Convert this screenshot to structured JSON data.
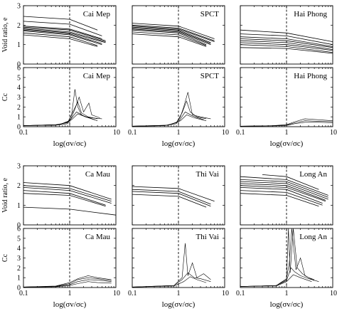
{
  "figure": {
    "panel_labels": [
      "Cai Mep",
      "SPCT",
      "Hai Phong",
      "Ca Mau",
      "Thi Vai",
      "Long An"
    ],
    "x_axis_label": "log(σv/σc)",
    "y_label_void": "Void ratio, e",
    "y_label_cc": "Cc",
    "x_ticks": [
      "0.1",
      "1",
      "10"
    ],
    "y_ticks_void": [
      "0",
      "1",
      "2",
      "3"
    ],
    "y_ticks_cc": [
      "0",
      "1",
      "2",
      "3",
      "4",
      "5",
      "6"
    ]
  },
  "chart_data": [
    {
      "type": "line",
      "site": "Cai Mep",
      "ylabel": "Void ratio, e",
      "xlabel": "",
      "xscale": "log",
      "xlim": [
        0.1,
        10
      ],
      "ylim": [
        0,
        3
      ],
      "reference_line_x": 1,
      "series": [
        {
          "x": [
            0.1,
            1,
            4
          ],
          "values": [
            2.45,
            2.3,
            1.75
          ]
        },
        {
          "x": [
            0.1,
            1,
            5
          ],
          "values": [
            2.2,
            2.05,
            1.45
          ]
        },
        {
          "x": [
            0.1,
            1,
            5
          ],
          "values": [
            1.95,
            1.8,
            1.3
          ]
        },
        {
          "x": [
            0.1,
            1,
            6
          ],
          "values": [
            1.9,
            1.75,
            1.2
          ]
        },
        {
          "x": [
            0.1,
            1,
            6
          ],
          "values": [
            1.85,
            1.65,
            1.15
          ]
        },
        {
          "x": [
            0.1,
            1,
            6
          ],
          "values": [
            1.8,
            1.6,
            1.1
          ]
        },
        {
          "x": [
            0.1,
            1,
            5
          ],
          "values": [
            1.75,
            1.55,
            1.05
          ]
        },
        {
          "x": [
            0.1,
            1,
            5
          ],
          "values": [
            1.7,
            1.5,
            1.0
          ]
        },
        {
          "x": [
            0.1,
            1,
            4
          ],
          "values": [
            1.6,
            1.4,
            0.95
          ]
        },
        {
          "x": [
            0.1,
            1,
            4
          ],
          "values": [
            1.5,
            1.3,
            0.9
          ]
        }
      ]
    },
    {
      "type": "line",
      "site": "SPCT",
      "ylabel": "",
      "xlabel": "",
      "xscale": "log",
      "xlim": [
        0.1,
        10
      ],
      "ylim": [
        0,
        3
      ],
      "reference_line_x": 1,
      "series": [
        {
          "x": [
            0.1,
            1,
            6
          ],
          "values": [
            2.1,
            1.95,
            1.3
          ]
        },
        {
          "x": [
            0.1,
            1,
            6
          ],
          "values": [
            2.0,
            1.85,
            1.2
          ]
        },
        {
          "x": [
            0.1,
            1,
            6
          ],
          "values": [
            1.95,
            1.8,
            1.15
          ]
        },
        {
          "x": [
            0.1,
            1,
            5
          ],
          "values": [
            1.9,
            1.75,
            1.1
          ]
        },
        {
          "x": [
            0.1,
            1,
            5
          ],
          "values": [
            1.85,
            1.7,
            1.05
          ]
        },
        {
          "x": [
            0.1,
            1,
            5
          ],
          "values": [
            1.8,
            1.65,
            1.0
          ]
        },
        {
          "x": [
            0.1,
            1,
            4
          ],
          "values": [
            1.75,
            1.6,
            1.0
          ]
        },
        {
          "x": [
            0.1,
            1,
            4
          ],
          "values": [
            1.65,
            1.5,
            0.95
          ]
        },
        {
          "x": [
            0.1,
            1,
            4
          ],
          "values": [
            1.55,
            1.4,
            0.9
          ]
        }
      ]
    },
    {
      "type": "line",
      "site": "Hai Phong",
      "ylabel": "",
      "xlabel": "",
      "xscale": "log",
      "xlim": [
        0.1,
        10
      ],
      "ylim": [
        0,
        3
      ],
      "reference_line_x": 1,
      "series": [
        {
          "x": [
            0.1,
            1,
            10
          ],
          "values": [
            1.75,
            1.6,
            1.15
          ]
        },
        {
          "x": [
            0.1,
            1,
            10
          ],
          "values": [
            1.55,
            1.45,
            1.0
          ]
        },
        {
          "x": [
            0.1,
            1,
            10
          ],
          "values": [
            1.4,
            1.3,
            0.9
          ]
        },
        {
          "x": [
            0.1,
            1,
            10
          ],
          "values": [
            1.3,
            1.2,
            0.85
          ]
        },
        {
          "x": [
            0.1,
            1,
            10
          ],
          "values": [
            1.2,
            1.1,
            0.75
          ]
        },
        {
          "x": [
            0.1,
            1,
            10
          ],
          "values": [
            1.1,
            1.0,
            0.7
          ]
        },
        {
          "x": [
            0.1,
            1,
            10
          ],
          "values": [
            1.0,
            0.9,
            0.6
          ]
        },
        {
          "x": [
            0.1,
            1,
            10
          ],
          "values": [
            0.85,
            0.8,
            0.55
          ]
        }
      ]
    },
    {
      "type": "line",
      "site": "Cai Mep",
      "ylabel": "Cc",
      "xlabel": "log(σv/σc)",
      "xscale": "log",
      "xlim": [
        0.1,
        10
      ],
      "ylim": [
        0,
        6
      ],
      "reference_line_x": 1,
      "series": [
        {
          "x": [
            0.1,
            0.5,
            0.9,
            1.1,
            1.3,
            1.5,
            1.8,
            2.2,
            3,
            5
          ],
          "values": [
            0.1,
            0.15,
            0.3,
            1.2,
            3.8,
            2.0,
            1.2,
            1.0,
            0.9,
            0.8
          ]
        },
        {
          "x": [
            0.1,
            0.5,
            0.9,
            1.2,
            1.5,
            1.8,
            2.5,
            4
          ],
          "values": [
            0.1,
            0.2,
            0.4,
            1.6,
            2.5,
            1.4,
            1.0,
            0.8
          ]
        },
        {
          "x": [
            0.1,
            0.5,
            1.0,
            1.3,
            1.6,
            2.0,
            2.6,
            3.0,
            4.5
          ],
          "values": [
            0.1,
            0.15,
            0.5,
            1.8,
            3.0,
            1.5,
            2.4,
            1.2,
            0.9
          ]
        },
        {
          "x": [
            0.1,
            0.6,
            1.0,
            1.4,
            2.0,
            3.5
          ],
          "values": [
            0.1,
            0.2,
            0.6,
            1.5,
            1.1,
            0.7
          ]
        },
        {
          "x": [
            0.1,
            0.6,
            1.1,
            1.5,
            2.2,
            4
          ],
          "values": [
            0.1,
            0.2,
            0.7,
            1.3,
            1.0,
            0.6
          ]
        }
      ]
    },
    {
      "type": "line",
      "site": "SPCT",
      "ylabel": "",
      "xlabel": "log(σv/σc)",
      "xscale": "log",
      "xlim": [
        0.1,
        10
      ],
      "ylim": [
        0,
        6
      ],
      "reference_line_x": 1,
      "series": [
        {
          "x": [
            0.1,
            0.5,
            0.9,
            1.1,
            1.3,
            1.6,
            2.0,
            3.0,
            5
          ],
          "values": [
            0.05,
            0.1,
            0.3,
            1.0,
            2.0,
            3.5,
            1.2,
            1.0,
            0.8
          ]
        },
        {
          "x": [
            0.1,
            0.5,
            0.9,
            1.2,
            1.5,
            1.8,
            2.5,
            4
          ],
          "values": [
            0.05,
            0.1,
            0.4,
            1.4,
            2.6,
            1.5,
            1.0,
            0.8
          ]
        },
        {
          "x": [
            0.1,
            0.6,
            1.0,
            1.4,
            2.0,
            3.5
          ],
          "values": [
            0.05,
            0.15,
            0.5,
            1.5,
            1.1,
            0.7
          ]
        },
        {
          "x": [
            0.1,
            0.6,
            1.1,
            1.5,
            2.2,
            4
          ],
          "values": [
            0.05,
            0.15,
            0.6,
            1.2,
            0.9,
            0.6
          ]
        }
      ]
    },
    {
      "type": "line",
      "site": "Hai Phong",
      "ylabel": "",
      "xlabel": "log(σv/σc)",
      "xscale": "log",
      "xlim": [
        0.1,
        10
      ],
      "ylim": [
        0,
        6
      ],
      "reference_line_x": 1,
      "series": [
        {
          "x": [
            0.1,
            0.5,
            1,
            1.5,
            2.5,
            5,
            10
          ],
          "values": [
            0.05,
            0.1,
            0.2,
            0.5,
            0.8,
            0.7,
            0.6
          ]
        },
        {
          "x": [
            0.1,
            0.5,
            1,
            1.5,
            2.5,
            5,
            10
          ],
          "values": [
            0.05,
            0.1,
            0.15,
            0.4,
            0.6,
            0.55,
            0.5
          ]
        },
        {
          "x": [
            0.1,
            0.5,
            1,
            1.5,
            2.5,
            5,
            10
          ],
          "values": [
            0.05,
            0.08,
            0.12,
            0.3,
            0.45,
            0.45,
            0.4
          ]
        }
      ]
    },
    {
      "type": "line",
      "site": "Ca Mau",
      "ylabel": "Void ratio, e",
      "xlabel": "",
      "xscale": "log",
      "xlim": [
        0.1,
        10
      ],
      "ylim": [
        0,
        3
      ],
      "reference_line_x": 1,
      "series": [
        {
          "x": [
            0.1,
            1,
            8
          ],
          "values": [
            2.15,
            2.0,
            1.3
          ]
        },
        {
          "x": [
            0.1,
            1,
            8
          ],
          "values": [
            2.0,
            1.85,
            1.2
          ]
        },
        {
          "x": [
            0.1,
            1,
            8
          ],
          "values": [
            1.9,
            1.75,
            1.1
          ]
        },
        {
          "x": [
            0.1,
            1,
            6
          ],
          "values": [
            1.75,
            1.6,
            1.0
          ]
        },
        {
          "x": [
            0.1,
            1,
            6
          ],
          "values": [
            1.6,
            1.5,
            0.95
          ]
        },
        {
          "x": [
            0.1,
            1,
            10
          ],
          "values": [
            0.9,
            0.8,
            0.5
          ]
        }
      ]
    },
    {
      "type": "line",
      "site": "Thi Vai",
      "ylabel": "",
      "xlabel": "",
      "xscale": "log",
      "xlim": [
        0.1,
        10
      ],
      "ylim": [
        0,
        3
      ],
      "reference_line_x": 1,
      "series": [
        {
          "x": [
            0.1,
            1,
            6
          ],
          "values": [
            1.95,
            1.85,
            1.2
          ]
        },
        {
          "x": [
            0.1,
            1,
            5
          ],
          "values": [
            1.8,
            1.7,
            1.05
          ]
        },
        {
          "x": [
            0.1,
            1,
            5
          ],
          "values": [
            1.7,
            1.6,
            0.95
          ]
        },
        {
          "x": [
            0.1,
            1,
            4
          ],
          "values": [
            1.55,
            1.45,
            0.9
          ]
        }
      ]
    },
    {
      "type": "line",
      "site": "Long An",
      "ylabel": "",
      "xlabel": "",
      "xscale": "log",
      "xlim": [
        0.1,
        10
      ],
      "ylim": [
        0,
        3
      ],
      "reference_line_x": 1,
      "series": [
        {
          "x": [
            0.1,
            1,
            8
          ],
          "values": [
            2.45,
            2.3,
            1.5
          ]
        },
        {
          "x": [
            0.1,
            1,
            8
          ],
          "values": [
            2.3,
            2.2,
            1.4
          ]
        },
        {
          "x": [
            0.1,
            1,
            8
          ],
          "values": [
            2.2,
            2.1,
            1.3
          ]
        },
        {
          "x": [
            0.1,
            1,
            7
          ],
          "values": [
            2.1,
            2.0,
            1.25
          ]
        },
        {
          "x": [
            0.1,
            1,
            7
          ],
          "values": [
            2.0,
            1.9,
            1.2
          ]
        },
        {
          "x": [
            0.1,
            1,
            6
          ],
          "values": [
            1.9,
            1.8,
            1.1
          ]
        },
        {
          "x": [
            0.1,
            1,
            6
          ],
          "values": [
            1.75,
            1.65,
            1.0
          ]
        },
        {
          "x": [
            0.1,
            1,
            5
          ],
          "values": [
            1.6,
            1.5,
            0.95
          ]
        },
        {
          "x": [
            0.3,
            1,
            5
          ],
          "values": [
            2.55,
            2.45,
            1.8
          ]
        }
      ]
    },
    {
      "type": "line",
      "site": "Ca Mau",
      "ylabel": "Cc",
      "xlabel": "log(σv/σc)",
      "xscale": "log",
      "xlim": [
        0.1,
        10
      ],
      "ylim": [
        0,
        6
      ],
      "reference_line_x": 1,
      "series": [
        {
          "x": [
            0.1,
            0.5,
            1,
            1.5,
            2.5,
            4,
            8
          ],
          "values": [
            0.05,
            0.15,
            0.5,
            0.9,
            1.2,
            1.0,
            0.8
          ]
        },
        {
          "x": [
            0.1,
            0.5,
            1,
            1.5,
            2.5,
            4,
            8
          ],
          "values": [
            0.05,
            0.12,
            0.4,
            0.8,
            1.0,
            0.9,
            0.7
          ]
        },
        {
          "x": [
            0.1,
            0.5,
            1,
            1.5,
            2.5,
            4,
            8
          ],
          "values": [
            0.05,
            0.1,
            0.3,
            0.6,
            0.8,
            0.75,
            0.6
          ]
        },
        {
          "x": [
            0.1,
            0.5,
            1,
            1.5,
            2.5,
            4,
            8
          ],
          "values": [
            0.05,
            0.08,
            0.2,
            0.4,
            0.6,
            0.5,
            0.45
          ]
        }
      ]
    },
    {
      "type": "line",
      "site": "Thi Vai",
      "ylabel": "",
      "xlabel": "log(σv/σc)",
      "xscale": "log",
      "xlim": [
        0.1,
        10
      ],
      "ylim": [
        0,
        6
      ],
      "reference_line_x": 1,
      "series": [
        {
          "x": [
            0.1,
            0.8,
            1.2,
            1.4,
            1.6,
            2.0,
            2.5,
            3.5,
            5
          ],
          "values": [
            0.05,
            0.2,
            1.0,
            4.5,
            1.2,
            2.5,
            1.0,
            1.4,
            0.8
          ]
        },
        {
          "x": [
            0.1,
            0.8,
            1.2,
            1.6,
            2.2,
            3,
            5
          ],
          "values": [
            0.05,
            0.2,
            0.8,
            1.5,
            1.0,
            0.9,
            0.6
          ]
        },
        {
          "x": [
            0.1,
            0.8,
            1.3,
            1.8,
            2.5,
            4
          ],
          "values": [
            0.05,
            0.15,
            0.6,
            1.1,
            0.8,
            0.5
          ]
        }
      ]
    },
    {
      "type": "line",
      "site": "Long An",
      "ylabel": "",
      "xlabel": "log(σv/σc)",
      "xscale": "log",
      "xlim": [
        0.1,
        10
      ],
      "ylim": [
        0,
        6
      ],
      "reference_line_x": 1,
      "series": [
        {
          "x": [
            0.1,
            0.6,
            1.0,
            1.1,
            1.2,
            1.4,
            1.7,
            2.2,
            3,
            4
          ],
          "values": [
            0.1,
            0.2,
            0.8,
            6.0,
            1.5,
            6.0,
            2.0,
            1.4,
            1.0,
            0.8
          ]
        },
        {
          "x": [
            0.1,
            0.6,
            1.0,
            1.15,
            1.3,
            1.6,
            2.0,
            2.5,
            4
          ],
          "values": [
            0.1,
            0.2,
            0.9,
            2.5,
            6.0,
            1.8,
            3.0,
            1.2,
            0.7
          ]
        },
        {
          "x": [
            0.1,
            0.6,
            1.0,
            1.25,
            1.5,
            2.0,
            3,
            5
          ],
          "values": [
            0.1,
            0.2,
            0.7,
            2.0,
            1.6,
            1.2,
            0.9,
            0.6
          ]
        },
        {
          "x": [
            0.1,
            0.6,
            1.0,
            1.4,
            2.0,
            3.5
          ],
          "values": [
            0.1,
            0.15,
            0.6,
            1.3,
            1.0,
            0.6
          ]
        }
      ]
    }
  ]
}
